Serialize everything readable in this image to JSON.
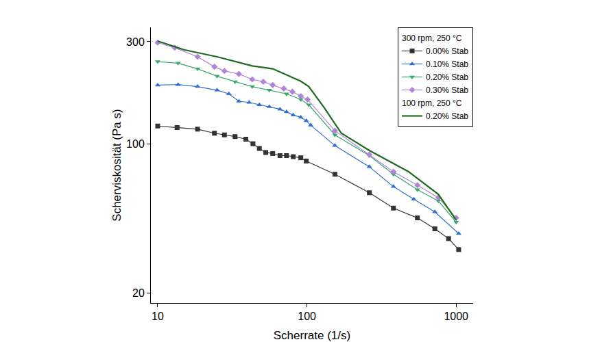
{
  "chart_data": {
    "type": "line",
    "x_label": "Scherrate (1/s)",
    "y_label": "Scherviskosität (Pa s)",
    "log": true,
    "grid": false,
    "legend": "upper right",
    "xlim": [
      9,
      1300
    ],
    "ylim": [
      18,
      350
    ],
    "xticks": [
      10,
      100,
      1000
    ],
    "yticks": [
      20,
      100,
      300
    ],
    "series": [
      {
        "name": "0.00% Stab",
        "group": "300 rpm, 250 °C",
        "color": "#333333",
        "marker": "square",
        "line_style": "solid",
        "x": [
          10,
          13.5,
          18.5,
          24,
          28,
          33,
          39,
          43.5,
          48,
          53,
          59,
          66,
          73,
          81,
          91,
          99,
          154,
          262,
          380,
          550,
          720,
          890,
          1040
        ],
        "values": [
          121,
          119,
          117,
          112,
          110,
          108,
          105,
          100,
          95,
          91,
          90,
          88,
          88,
          87,
          86,
          83,
          72,
          59,
          50,
          45,
          40,
          36,
          32
        ]
      },
      {
        "name": "0.10% Stab",
        "group": "300 rpm, 250 °C",
        "color": "#2f6fd0",
        "marker": "triangle-up",
        "line_style": "solid",
        "x": [
          10,
          13.7,
          18.5,
          25,
          30,
          35,
          41,
          48,
          56,
          66,
          73,
          81,
          91,
          99,
          106,
          154,
          262,
          380,
          520,
          720,
          1040
        ],
        "values": [
          188,
          189,
          185,
          178,
          171,
          158,
          156,
          152,
          149,
          145,
          141,
          136,
          133,
          128,
          122,
          98,
          78,
          63,
          55,
          48,
          38
        ]
      },
      {
        "name": "0.20% Stab",
        "group": "300 rpm, 250 °C",
        "color": "#3aa86b",
        "marker": "triangle-down",
        "line_style": "solid",
        "x": [
          10,
          13.7,
          18.5,
          25,
          33,
          43,
          56,
          73,
          91,
          103,
          154,
          262,
          380,
          550,
          760,
          1000
        ],
        "values": [
          242,
          238,
          224,
          207,
          195,
          185,
          178,
          171,
          161,
          152,
          110,
          88,
          72,
          61,
          54,
          43
        ]
      },
      {
        "name": "0.30% Stab",
        "group": "300 rpm, 250 °C",
        "color": "#b085d8",
        "marker": "diamond",
        "line_style": "solid",
        "x": [
          10,
          13,
          18.5,
          24,
          28,
          35,
          43,
          51,
          59,
          70,
          80,
          91,
          101,
          154,
          262,
          380,
          550,
          760,
          1000
        ],
        "values": [
          297,
          281,
          255,
          229,
          219,
          212,
          200,
          195,
          188,
          181,
          175,
          167,
          161,
          115,
          89,
          74,
          64,
          56,
          45
        ]
      },
      {
        "name": "0.20% Stab",
        "group": "100 rpm, 250 °C",
        "color": "#1e6b1e",
        "marker": "none",
        "line_style": "solid",
        "x": [
          10,
          15,
          25,
          43,
          59,
          91,
          103,
          131,
          170,
          262,
          480,
          760,
          1000
        ],
        "values": [
          302,
          275,
          255,
          231,
          224,
          196,
          185,
          147,
          112,
          93,
          74,
          58,
          44
        ]
      }
    ]
  }
}
